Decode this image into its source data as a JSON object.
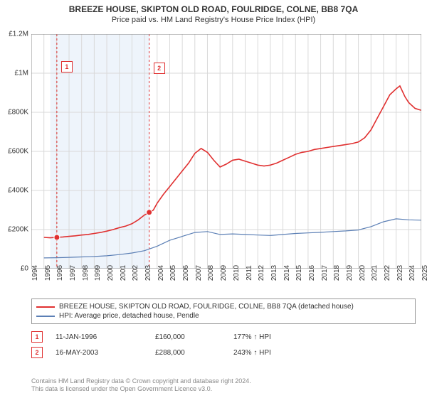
{
  "title": "BREEZE HOUSE, SKIPTON OLD ROAD, FOULRIDGE, COLNE, BB8 7QA",
  "subtitle": "Price paid vs. HM Land Registry's House Price Index (HPI)",
  "chart": {
    "type": "line",
    "xlim": [
      1994,
      2025
    ],
    "ylim": [
      0,
      1200000
    ],
    "x_ticks": [
      1994,
      1995,
      1996,
      1997,
      1998,
      1999,
      2000,
      2001,
      2002,
      2003,
      2004,
      2005,
      2006,
      2007,
      2008,
      2009,
      2010,
      2011,
      2012,
      2013,
      2014,
      2015,
      2016,
      2017,
      2018,
      2019,
      2020,
      2021,
      2022,
      2023,
      2024,
      2025
    ],
    "y_ticks": [
      0,
      200000,
      400000,
      600000,
      800000,
      1000000,
      1200000
    ],
    "y_tick_labels": [
      "£0",
      "£200K",
      "£400K",
      "£600K",
      "£800K",
      "£1M",
      "£1.2M"
    ],
    "grid_color": "#d9d9d9",
    "background_color": "#ffffff",
    "shaded_band": {
      "x_start": 1995.5,
      "x_end": 2003.4,
      "color": "#eef4fb"
    },
    "series": [
      {
        "name": "property",
        "label": "BREEZE HOUSE, SKIPTON OLD ROAD, FOULRIDGE, COLNE, BB8 7QA (detached house)",
        "color": "#e03030",
        "line_width": 1.6,
        "data": [
          [
            1995.0,
            160000
          ],
          [
            1995.5,
            158000
          ],
          [
            1996.0,
            160000
          ],
          [
            1996.5,
            162000
          ],
          [
            1997.0,
            165000
          ],
          [
            1997.5,
            168000
          ],
          [
            1998.0,
            172000
          ],
          [
            1998.5,
            175000
          ],
          [
            1999.0,
            180000
          ],
          [
            1999.5,
            185000
          ],
          [
            2000.0,
            192000
          ],
          [
            2000.5,
            200000
          ],
          [
            2001.0,
            210000
          ],
          [
            2001.5,
            218000
          ],
          [
            2002.0,
            230000
          ],
          [
            2002.5,
            250000
          ],
          [
            2003.0,
            275000
          ],
          [
            2003.4,
            288000
          ],
          [
            2003.7,
            300000
          ],
          [
            2004.0,
            335000
          ],
          [
            2004.5,
            380000
          ],
          [
            2005.0,
            420000
          ],
          [
            2005.5,
            460000
          ],
          [
            2006.0,
            500000
          ],
          [
            2006.5,
            540000
          ],
          [
            2007.0,
            590000
          ],
          [
            2007.5,
            615000
          ],
          [
            2008.0,
            595000
          ],
          [
            2008.5,
            555000
          ],
          [
            2009.0,
            520000
          ],
          [
            2009.5,
            535000
          ],
          [
            2010.0,
            555000
          ],
          [
            2010.5,
            560000
          ],
          [
            2011.0,
            550000
          ],
          [
            2011.5,
            540000
          ],
          [
            2012.0,
            530000
          ],
          [
            2012.5,
            525000
          ],
          [
            2013.0,
            530000
          ],
          [
            2013.5,
            540000
          ],
          [
            2014.0,
            555000
          ],
          [
            2014.5,
            570000
          ],
          [
            2015.0,
            585000
          ],
          [
            2015.5,
            595000
          ],
          [
            2016.0,
            600000
          ],
          [
            2016.5,
            610000
          ],
          [
            2017.0,
            615000
          ],
          [
            2017.5,
            620000
          ],
          [
            2018.0,
            625000
          ],
          [
            2018.5,
            630000
          ],
          [
            2019.0,
            635000
          ],
          [
            2019.5,
            640000
          ],
          [
            2020.0,
            648000
          ],
          [
            2020.5,
            670000
          ],
          [
            2021.0,
            710000
          ],
          [
            2021.5,
            770000
          ],
          [
            2022.0,
            830000
          ],
          [
            2022.5,
            890000
          ],
          [
            2023.0,
            920000
          ],
          [
            2023.3,
            935000
          ],
          [
            2023.7,
            880000
          ],
          [
            2024.0,
            850000
          ],
          [
            2024.5,
            820000
          ],
          [
            2025.0,
            810000
          ]
        ]
      },
      {
        "name": "hpi",
        "label": "HPI: Average price, detached house, Pendle",
        "color": "#5b7fb5",
        "line_width": 1.2,
        "data": [
          [
            1995.0,
            55000
          ],
          [
            1996.0,
            56000
          ],
          [
            1997.0,
            58000
          ],
          [
            1998.0,
            60000
          ],
          [
            1999.0,
            62000
          ],
          [
            2000.0,
            66000
          ],
          [
            2001.0,
            72000
          ],
          [
            2002.0,
            80000
          ],
          [
            2003.0,
            92000
          ],
          [
            2004.0,
            115000
          ],
          [
            2005.0,
            145000
          ],
          [
            2006.0,
            165000
          ],
          [
            2007.0,
            185000
          ],
          [
            2008.0,
            190000
          ],
          [
            2009.0,
            175000
          ],
          [
            2010.0,
            178000
          ],
          [
            2011.0,
            175000
          ],
          [
            2012.0,
            172000
          ],
          [
            2013.0,
            170000
          ],
          [
            2014.0,
            175000
          ],
          [
            2015.0,
            180000
          ],
          [
            2016.0,
            183000
          ],
          [
            2017.0,
            186000
          ],
          [
            2018.0,
            190000
          ],
          [
            2019.0,
            193000
          ],
          [
            2020.0,
            198000
          ],
          [
            2021.0,
            215000
          ],
          [
            2022.0,
            240000
          ],
          [
            2023.0,
            255000
          ],
          [
            2024.0,
            250000
          ],
          [
            2025.0,
            248000
          ]
        ]
      }
    ],
    "sale_markers": [
      {
        "id": "1",
        "x": 1996.03,
        "y": 160000,
        "dash_color": "#e03030"
      },
      {
        "id": "2",
        "x": 2003.37,
        "y": 288000,
        "dash_color": "#e03030"
      }
    ]
  },
  "legend": {
    "items": [
      {
        "color": "#e03030",
        "label": "BREEZE HOUSE, SKIPTON OLD ROAD, FOULRIDGE, COLNE, BB8 7QA (detached house)"
      },
      {
        "color": "#5b7fb5",
        "label": "HPI: Average price, detached house, Pendle"
      }
    ]
  },
  "sales_table": {
    "rows": [
      {
        "id": "1",
        "date": "11-JAN-1996",
        "price": "£160,000",
        "pct": "177% ↑ HPI"
      },
      {
        "id": "2",
        "date": "16-MAY-2003",
        "price": "£288,000",
        "pct": "243% ↑ HPI"
      }
    ]
  },
  "footer": {
    "line1": "Contains HM Land Registry data © Crown copyright and database right 2024.",
    "line2": "This data is licensed under the Open Government Licence v3.0."
  }
}
